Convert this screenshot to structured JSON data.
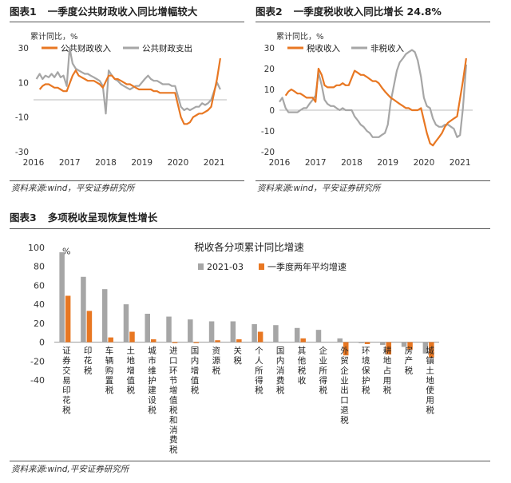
{
  "figure1": {
    "number": "图表1",
    "title": "一季度公共财政收入同比增幅较大",
    "source": "资料来源:wind，平安证券研究所"
  },
  "figure2": {
    "number": "图表2",
    "title": "一季度税收收入同比增长 24.8%",
    "source": "资料来源:wind，平安证券研究所"
  },
  "figure3": {
    "number": "图表3",
    "title": "多项税收呈现恢复性增长",
    "source": "资料来源:wind,平安证券研究所"
  },
  "chart_data": [
    {
      "type": "line",
      "ylabel": "累计同比，%",
      "ylim": [
        -30,
        30
      ],
      "yticks": [
        -30,
        -10,
        10,
        30
      ],
      "xlim": [
        2016,
        2021.35
      ],
      "xticks": [
        2016,
        2017,
        2018,
        2019,
        2020,
        2021
      ],
      "legend_position": "top-left",
      "series": [
        {
          "name": "公共财政收入",
          "color": "#E87722",
          "points": [
            [
              2016.17,
              6
            ],
            [
              2016.25,
              8
            ],
            [
              2016.33,
              9
            ],
            [
              2016.42,
              9
            ],
            [
              2016.5,
              8
            ],
            [
              2016.58,
              7
            ],
            [
              2016.67,
              7
            ],
            [
              2016.75,
              6
            ],
            [
              2016.83,
              5
            ],
            [
              2016.92,
              5
            ],
            [
              2017.08,
              14
            ],
            [
              2017.17,
              17
            ],
            [
              2017.25,
              14
            ],
            [
              2017.33,
              13
            ],
            [
              2017.42,
              12
            ],
            [
              2017.5,
              11
            ],
            [
              2017.58,
              11
            ],
            [
              2017.67,
              11
            ],
            [
              2017.75,
              10
            ],
            [
              2017.83,
              9
            ],
            [
              2017.92,
              7
            ],
            [
              2018.08,
              14
            ],
            [
              2018.17,
              14
            ],
            [
              2018.25,
              12
            ],
            [
              2018.33,
              12
            ],
            [
              2018.42,
              11
            ],
            [
              2018.5,
              10
            ],
            [
              2018.58,
              9
            ],
            [
              2018.67,
              9
            ],
            [
              2018.75,
              8
            ],
            [
              2018.83,
              7
            ],
            [
              2018.92,
              6
            ],
            [
              2019.08,
              6
            ],
            [
              2019.17,
              6
            ],
            [
              2019.25,
              6
            ],
            [
              2019.33,
              5
            ],
            [
              2019.42,
              5
            ],
            [
              2019.5,
              4
            ],
            [
              2019.58,
              4
            ],
            [
              2019.67,
              4
            ],
            [
              2019.75,
              4
            ],
            [
              2019.83,
              4
            ],
            [
              2019.92,
              4
            ],
            [
              2020.08,
              -10
            ],
            [
              2020.17,
              -14
            ],
            [
              2020.25,
              -14
            ],
            [
              2020.33,
              -13
            ],
            [
              2020.42,
              -10
            ],
            [
              2020.5,
              -9
            ],
            [
              2020.58,
              -8
            ],
            [
              2020.67,
              -8
            ],
            [
              2020.75,
              -7
            ],
            [
              2020.83,
              -6
            ],
            [
              2020.92,
              -4
            ],
            [
              2021.08,
              12
            ],
            [
              2021.17,
              24
            ]
          ]
        },
        {
          "name": "公共财政支出",
          "color": "#A6A6A6",
          "points": [
            [
              2016.08,
              12
            ],
            [
              2016.17,
              15
            ],
            [
              2016.25,
              12
            ],
            [
              2016.33,
              14
            ],
            [
              2016.42,
              13
            ],
            [
              2016.5,
              15
            ],
            [
              2016.58,
              13
            ],
            [
              2016.67,
              16
            ],
            [
              2016.75,
              13
            ],
            [
              2016.83,
              14
            ],
            [
              2016.92,
              8
            ],
            [
              2017.0,
              30
            ],
            [
              2017.08,
              21
            ],
            [
              2017.17,
              18
            ],
            [
              2017.25,
              17
            ],
            [
              2017.33,
              16
            ],
            [
              2017.42,
              15
            ],
            [
              2017.5,
              15
            ],
            [
              2017.58,
              14
            ],
            [
              2017.67,
              13
            ],
            [
              2017.75,
              12
            ],
            [
              2017.83,
              11
            ],
            [
              2017.92,
              8
            ],
            [
              2018.0,
              -8
            ],
            [
              2018.08,
              17
            ],
            [
              2018.17,
              14
            ],
            [
              2018.25,
              12
            ],
            [
              2018.33,
              11
            ],
            [
              2018.42,
              9
            ],
            [
              2018.5,
              8
            ],
            [
              2018.58,
              7
            ],
            [
              2018.67,
              6
            ],
            [
              2018.75,
              7
            ],
            [
              2018.83,
              8
            ],
            [
              2018.92,
              8
            ],
            [
              2019.08,
              12
            ],
            [
              2019.17,
              14
            ],
            [
              2019.25,
              12
            ],
            [
              2019.33,
              11
            ],
            [
              2019.42,
              11
            ],
            [
              2019.5,
              10
            ],
            [
              2019.58,
              9
            ],
            [
              2019.67,
              9
            ],
            [
              2019.75,
              9
            ],
            [
              2019.83,
              8
            ],
            [
              2019.92,
              8
            ],
            [
              2020.08,
              -4
            ],
            [
              2020.17,
              -6
            ],
            [
              2020.25,
              -5
            ],
            [
              2020.33,
              -6
            ],
            [
              2020.42,
              -5
            ],
            [
              2020.5,
              -4
            ],
            [
              2020.58,
              -4
            ],
            [
              2020.67,
              -2
            ],
            [
              2020.75,
              -3
            ],
            [
              2020.83,
              -2
            ],
            [
              2020.92,
              0
            ],
            [
              2021.08,
              10
            ],
            [
              2021.17,
              6
            ]
          ]
        }
      ]
    },
    {
      "type": "line",
      "ylabel": "累计同比，%",
      "ylim": [
        -20,
        30
      ],
      "yticks": [
        -20,
        -10,
        0,
        10,
        20,
        30
      ],
      "xlim": [
        2016,
        2021.35
      ],
      "xticks": [
        2016,
        2017,
        2018,
        2019,
        2020,
        2021
      ],
      "legend_position": "top-left",
      "series": [
        {
          "name": "税收收入",
          "color": "#E87722",
          "points": [
            [
              2016.17,
              7
            ],
            [
              2016.25,
              9
            ],
            [
              2016.33,
              10
            ],
            [
              2016.42,
              9
            ],
            [
              2016.5,
              8
            ],
            [
              2016.58,
              8
            ],
            [
              2016.67,
              7
            ],
            [
              2016.75,
              6
            ],
            [
              2016.83,
              6
            ],
            [
              2016.92,
              6
            ],
            [
              2017.0,
              4
            ],
            [
              2017.08,
              20
            ],
            [
              2017.17,
              17
            ],
            [
              2017.25,
              12
            ],
            [
              2017.33,
              11
            ],
            [
              2017.42,
              11
            ],
            [
              2017.5,
              11
            ],
            [
              2017.58,
              12
            ],
            [
              2017.67,
              12
            ],
            [
              2017.75,
              13
            ],
            [
              2017.83,
              12
            ],
            [
              2017.92,
              12
            ],
            [
              2018.08,
              19
            ],
            [
              2018.17,
              18
            ],
            [
              2018.25,
              17
            ],
            [
              2018.33,
              17
            ],
            [
              2018.42,
              16
            ],
            [
              2018.5,
              15
            ],
            [
              2018.58,
              14
            ],
            [
              2018.67,
              14
            ],
            [
              2018.75,
              13
            ],
            [
              2018.83,
              11
            ],
            [
              2018.92,
              9
            ],
            [
              2019.08,
              6
            ],
            [
              2019.17,
              5
            ],
            [
              2019.25,
              4
            ],
            [
              2019.33,
              3
            ],
            [
              2019.42,
              2
            ],
            [
              2019.5,
              1
            ],
            [
              2019.58,
              1
            ],
            [
              2019.67,
              0
            ],
            [
              2019.75,
              0
            ],
            [
              2019.83,
              0
            ],
            [
              2019.92,
              1
            ],
            [
              2020.08,
              -11
            ],
            [
              2020.17,
              -16
            ],
            [
              2020.25,
              -17
            ],
            [
              2020.33,
              -15
            ],
            [
              2020.42,
              -13
            ],
            [
              2020.5,
              -11
            ],
            [
              2020.58,
              -8
            ],
            [
              2020.67,
              -6
            ],
            [
              2020.75,
              -5
            ],
            [
              2020.83,
              -4
            ],
            [
              2020.92,
              -3
            ],
            [
              2021.08,
              14
            ],
            [
              2021.17,
              25
            ]
          ]
        },
        {
          "name": "非税收入",
          "color": "#A6A6A6",
          "points": [
            [
              2016.0,
              4
            ],
            [
              2016.08,
              6
            ],
            [
              2016.17,
              1
            ],
            [
              2016.25,
              -1
            ],
            [
              2016.33,
              -1
            ],
            [
              2016.42,
              -1
            ],
            [
              2016.5,
              -1
            ],
            [
              2016.58,
              0
            ],
            [
              2016.67,
              1
            ],
            [
              2016.75,
              1
            ],
            [
              2016.83,
              3
            ],
            [
              2016.92,
              5
            ],
            [
              2017.0,
              7
            ],
            [
              2017.08,
              18
            ],
            [
              2017.17,
              12
            ],
            [
              2017.25,
              5
            ],
            [
              2017.33,
              3
            ],
            [
              2017.42,
              2
            ],
            [
              2017.5,
              2
            ],
            [
              2017.58,
              1
            ],
            [
              2017.67,
              0
            ],
            [
              2017.75,
              1
            ],
            [
              2017.83,
              0
            ],
            [
              2017.92,
              0
            ],
            [
              2018.0,
              0
            ],
            [
              2018.08,
              -3
            ],
            [
              2018.17,
              -5
            ],
            [
              2018.25,
              -7
            ],
            [
              2018.33,
              -8
            ],
            [
              2018.42,
              -10
            ],
            [
              2018.5,
              -11
            ],
            [
              2018.58,
              -13
            ],
            [
              2018.67,
              -13
            ],
            [
              2018.75,
              -13
            ],
            [
              2018.83,
              -12
            ],
            [
              2018.92,
              -11
            ],
            [
              2019.0,
              -7
            ],
            [
              2019.08,
              4
            ],
            [
              2019.17,
              12
            ],
            [
              2019.25,
              19
            ],
            [
              2019.33,
              23
            ],
            [
              2019.42,
              25
            ],
            [
              2019.5,
              27
            ],
            [
              2019.58,
              28
            ],
            [
              2019.67,
              29
            ],
            [
              2019.75,
              28
            ],
            [
              2019.83,
              24
            ],
            [
              2019.92,
              16
            ],
            [
              2020.0,
              6
            ],
            [
              2020.08,
              2
            ],
            [
              2020.17,
              1
            ],
            [
              2020.25,
              -4
            ],
            [
              2020.33,
              -7
            ],
            [
              2020.42,
              -8
            ],
            [
              2020.5,
              -8
            ],
            [
              2020.58,
              -7
            ],
            [
              2020.67,
              -7
            ],
            [
              2020.75,
              -8
            ],
            [
              2020.83,
              -9
            ],
            [
              2020.92,
              -13
            ],
            [
              2021.0,
              -12
            ],
            [
              2021.08,
              1
            ],
            [
              2021.17,
              22
            ]
          ]
        }
      ]
    },
    {
      "type": "bar",
      "title": "税收各分项累计同比增速",
      "ylabel": "%",
      "ylim": [
        -40,
        100
      ],
      "yticks": [
        -40,
        -20,
        0,
        20,
        40,
        60,
        80,
        100
      ],
      "legend_position": "top-center",
      "categories": [
        "证券交易印花税",
        "印花税",
        "车辆购置税",
        "土地增值税",
        "城市维护建设税",
        "进口环节增值税和消费税",
        "国内增值税",
        "资源税",
        "关税",
        "个人所得税",
        "国内消费税",
        "其他税收",
        "企业所得税",
        "外贸企业出口退税",
        "环境保护税",
        "耕地占用税",
        "房产税",
        "城镇土地使用税"
      ],
      "series": [
        {
          "name": "2021-03",
          "color": "#A6A6A6",
          "values": [
            95,
            69,
            56,
            40,
            30,
            27,
            24,
            22,
            22,
            19,
            18,
            15,
            13,
            4,
            -1,
            -3,
            -5,
            -12
          ]
        },
        {
          "name": "一季度两年平均增速",
          "color": "#E87722",
          "values": [
            49,
            33,
            5,
            11,
            3,
            -1,
            -1,
            2,
            3,
            11,
            0,
            4,
            0,
            -14,
            -2,
            -13,
            -8,
            -16
          ]
        }
      ]
    }
  ]
}
